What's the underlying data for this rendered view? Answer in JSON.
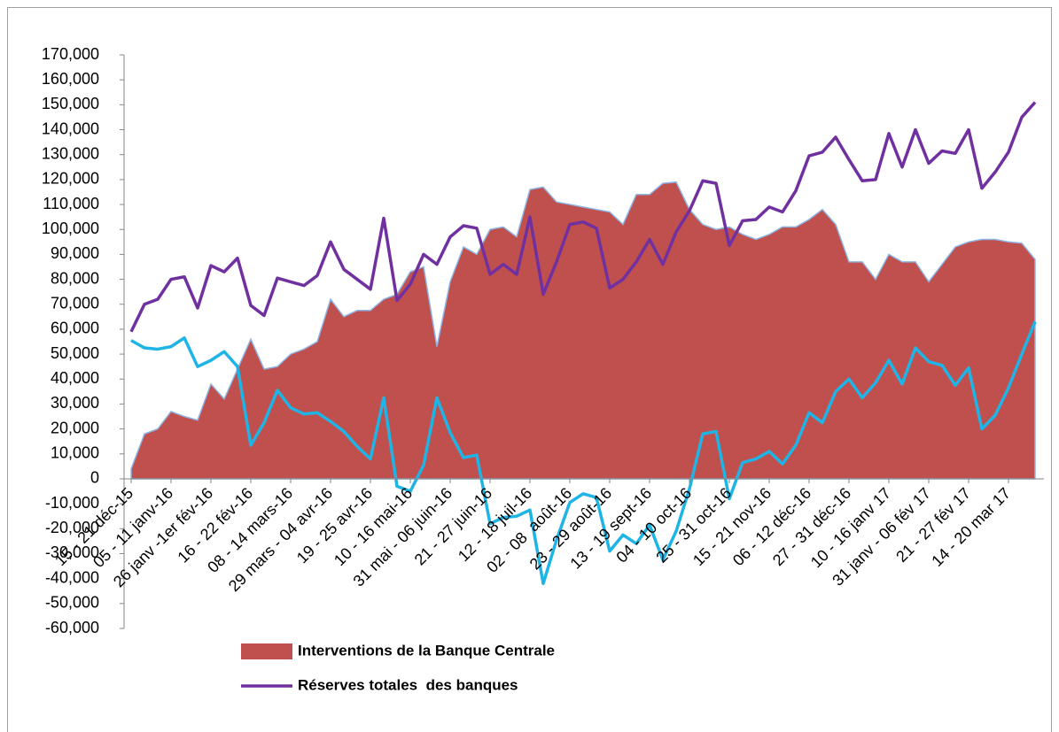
{
  "chart_data": {
    "type": "combo",
    "categories": [
      "15 - 21 déc-15",
      null,
      null,
      "05 - 11 janv-16",
      null,
      null,
      "26 janv -1er fév-16",
      null,
      null,
      "16 - 22 fév-16",
      null,
      null,
      "08 - 14 mars-16",
      null,
      null,
      "29 mars - 04 avr-16",
      null,
      null,
      "19 - 25 avr-16",
      null,
      null,
      "10 - 16 mai-16",
      null,
      null,
      "31 mai - 06 juin-16",
      null,
      null,
      "21 - 27 juin-16",
      null,
      null,
      "12 - 18 juil-16",
      null,
      null,
      "02 - 08  août-16",
      null,
      null,
      "23 - 29 août-16",
      null,
      null,
      "13 - 19 sept-16",
      null,
      null,
      "04 - 10 oct-16",
      null,
      null,
      "25 - 31 oct-16",
      null,
      null,
      "15 - 21 nov-16",
      null,
      null,
      "06 - 12 déc-16",
      null,
      null,
      "27 - 31 déc-16",
      null,
      null,
      "10 - 16 janv 17",
      null,
      null,
      "31 janv - 06 fév 17",
      null,
      null,
      "21 - 27 fév 17",
      null,
      null,
      "14 - 20 mar 17",
      null,
      null
    ],
    "series": [
      {
        "name": "Interventions de la Banque Centrale",
        "type": "area",
        "color": "#c0504d",
        "values": [
          4000,
          18000,
          20000,
          27000,
          25000,
          23500,
          38000,
          32000,
          44000,
          56000,
          44000,
          45000,
          50000,
          52000,
          55000,
          72000,
          65000,
          67500,
          67500,
          72000,
          74000,
          83000,
          85000,
          53000,
          79000,
          93000,
          90000,
          100000,
          101000,
          97000,
          116000,
          117000,
          111000,
          110000,
          109000,
          108000,
          107000,
          102000,
          114000,
          114000,
          118500,
          119000,
          108000,
          102000,
          100000,
          101000,
          98000,
          96000,
          98000,
          101000,
          101000,
          104000,
          108000,
          102000,
          87000,
          87000,
          80000,
          90000,
          87000,
          87000,
          79000,
          86000,
          93000,
          95000,
          96000,
          96000,
          95000,
          94500,
          88000
        ]
      },
      {
        "type": "line",
        "color": "#1fb4e6",
        "values": [
          55500,
          52500,
          52000,
          53000,
          56500,
          45000,
          47500,
          51000,
          45000,
          13500,
          22500,
          35500,
          28500,
          26000,
          26500,
          23000,
          19000,
          13000,
          8000,
          32500,
          -3000,
          -5000,
          5500,
          32500,
          18500,
          8500,
          9500,
          -18000,
          -15500,
          -15000,
          -12500,
          -42000,
          -24500,
          -9500,
          -6000,
          -7500,
          -29000,
          -22500,
          -26000,
          -18500,
          -32500,
          -21000,
          -4000,
          18000,
          19000,
          -8000,
          6500,
          8000,
          11000,
          6000,
          13500,
          26500,
          22500,
          35000,
          40000,
          32500,
          38500,
          47500,
          38000,
          52500,
          47000,
          45500,
          37500,
          44500,
          20000,
          25500,
          36500,
          50000,
          63000
        ]
      },
      {
        "name": "Réserves totales  des banques",
        "type": "line",
        "color": "#7030a0",
        "values": [
          59000,
          70000,
          72000,
          80000,
          81000,
          68500,
          85500,
          83000,
          88500,
          69500,
          65500,
          80500,
          79000,
          77500,
          81500,
          95000,
          84000,
          80000,
          76000,
          104500,
          71500,
          78000,
          90000,
          86000,
          97000,
          101500,
          100500,
          82000,
          86000,
          82000,
          105000,
          74000,
          87000,
          102000,
          103000,
          100500,
          76500,
          80000,
          87000,
          96000,
          86000,
          99000,
          107500,
          119500,
          118500,
          93500,
          103500,
          104000,
          109000,
          107000,
          115500,
          129500,
          131000,
          137000,
          128000,
          119500,
          120000,
          138500,
          125000,
          140000,
          126500,
          131500,
          130500,
          140000,
          116500,
          123000,
          131000,
          145000,
          151000
        ]
      }
    ],
    "ylim": [
      -60000,
      170000
    ],
    "yticks": [
      {
        "value": -60000,
        "label": "-60,000"
      },
      {
        "value": -50000,
        "label": "-50,000"
      },
      {
        "value": -40000,
        "label": "-40,000"
      },
      {
        "value": -30000,
        "label": "-30,000"
      },
      {
        "value": -20000,
        "label": "-20,000"
      },
      {
        "value": -10000,
        "label": "-10,000"
      },
      0,
      {
        "value": 10000,
        "label": "10,000"
      },
      {
        "value": 20000,
        "label": "20,000"
      },
      {
        "value": 30000,
        "label": "30,000"
      },
      {
        "value": 40000,
        "label": "40,000"
      },
      {
        "value": 50000,
        "label": "50,000"
      },
      {
        "value": 60000,
        "label": "60,000"
      },
      {
        "value": 70000,
        "label": "70,000"
      },
      {
        "value": 80000,
        "label": "80,000"
      },
      {
        "value": 90000,
        "label": "90,000"
      },
      {
        "value": 100000,
        "label": "100,000"
      },
      {
        "value": 110000,
        "label": "110,000"
      },
      {
        "value": 120000,
        "label": "120,000"
      },
      {
        "value": 130000,
        "label": "130,000"
      },
      {
        "value": 140000,
        "label": "140,000"
      },
      {
        "value": 150000,
        "label": "150,000"
      },
      {
        "value": 160000,
        "label": "160,000"
      },
      {
        "value": 170000,
        "label": "170,000"
      }
    ],
    "legend": "bottom-left"
  }
}
